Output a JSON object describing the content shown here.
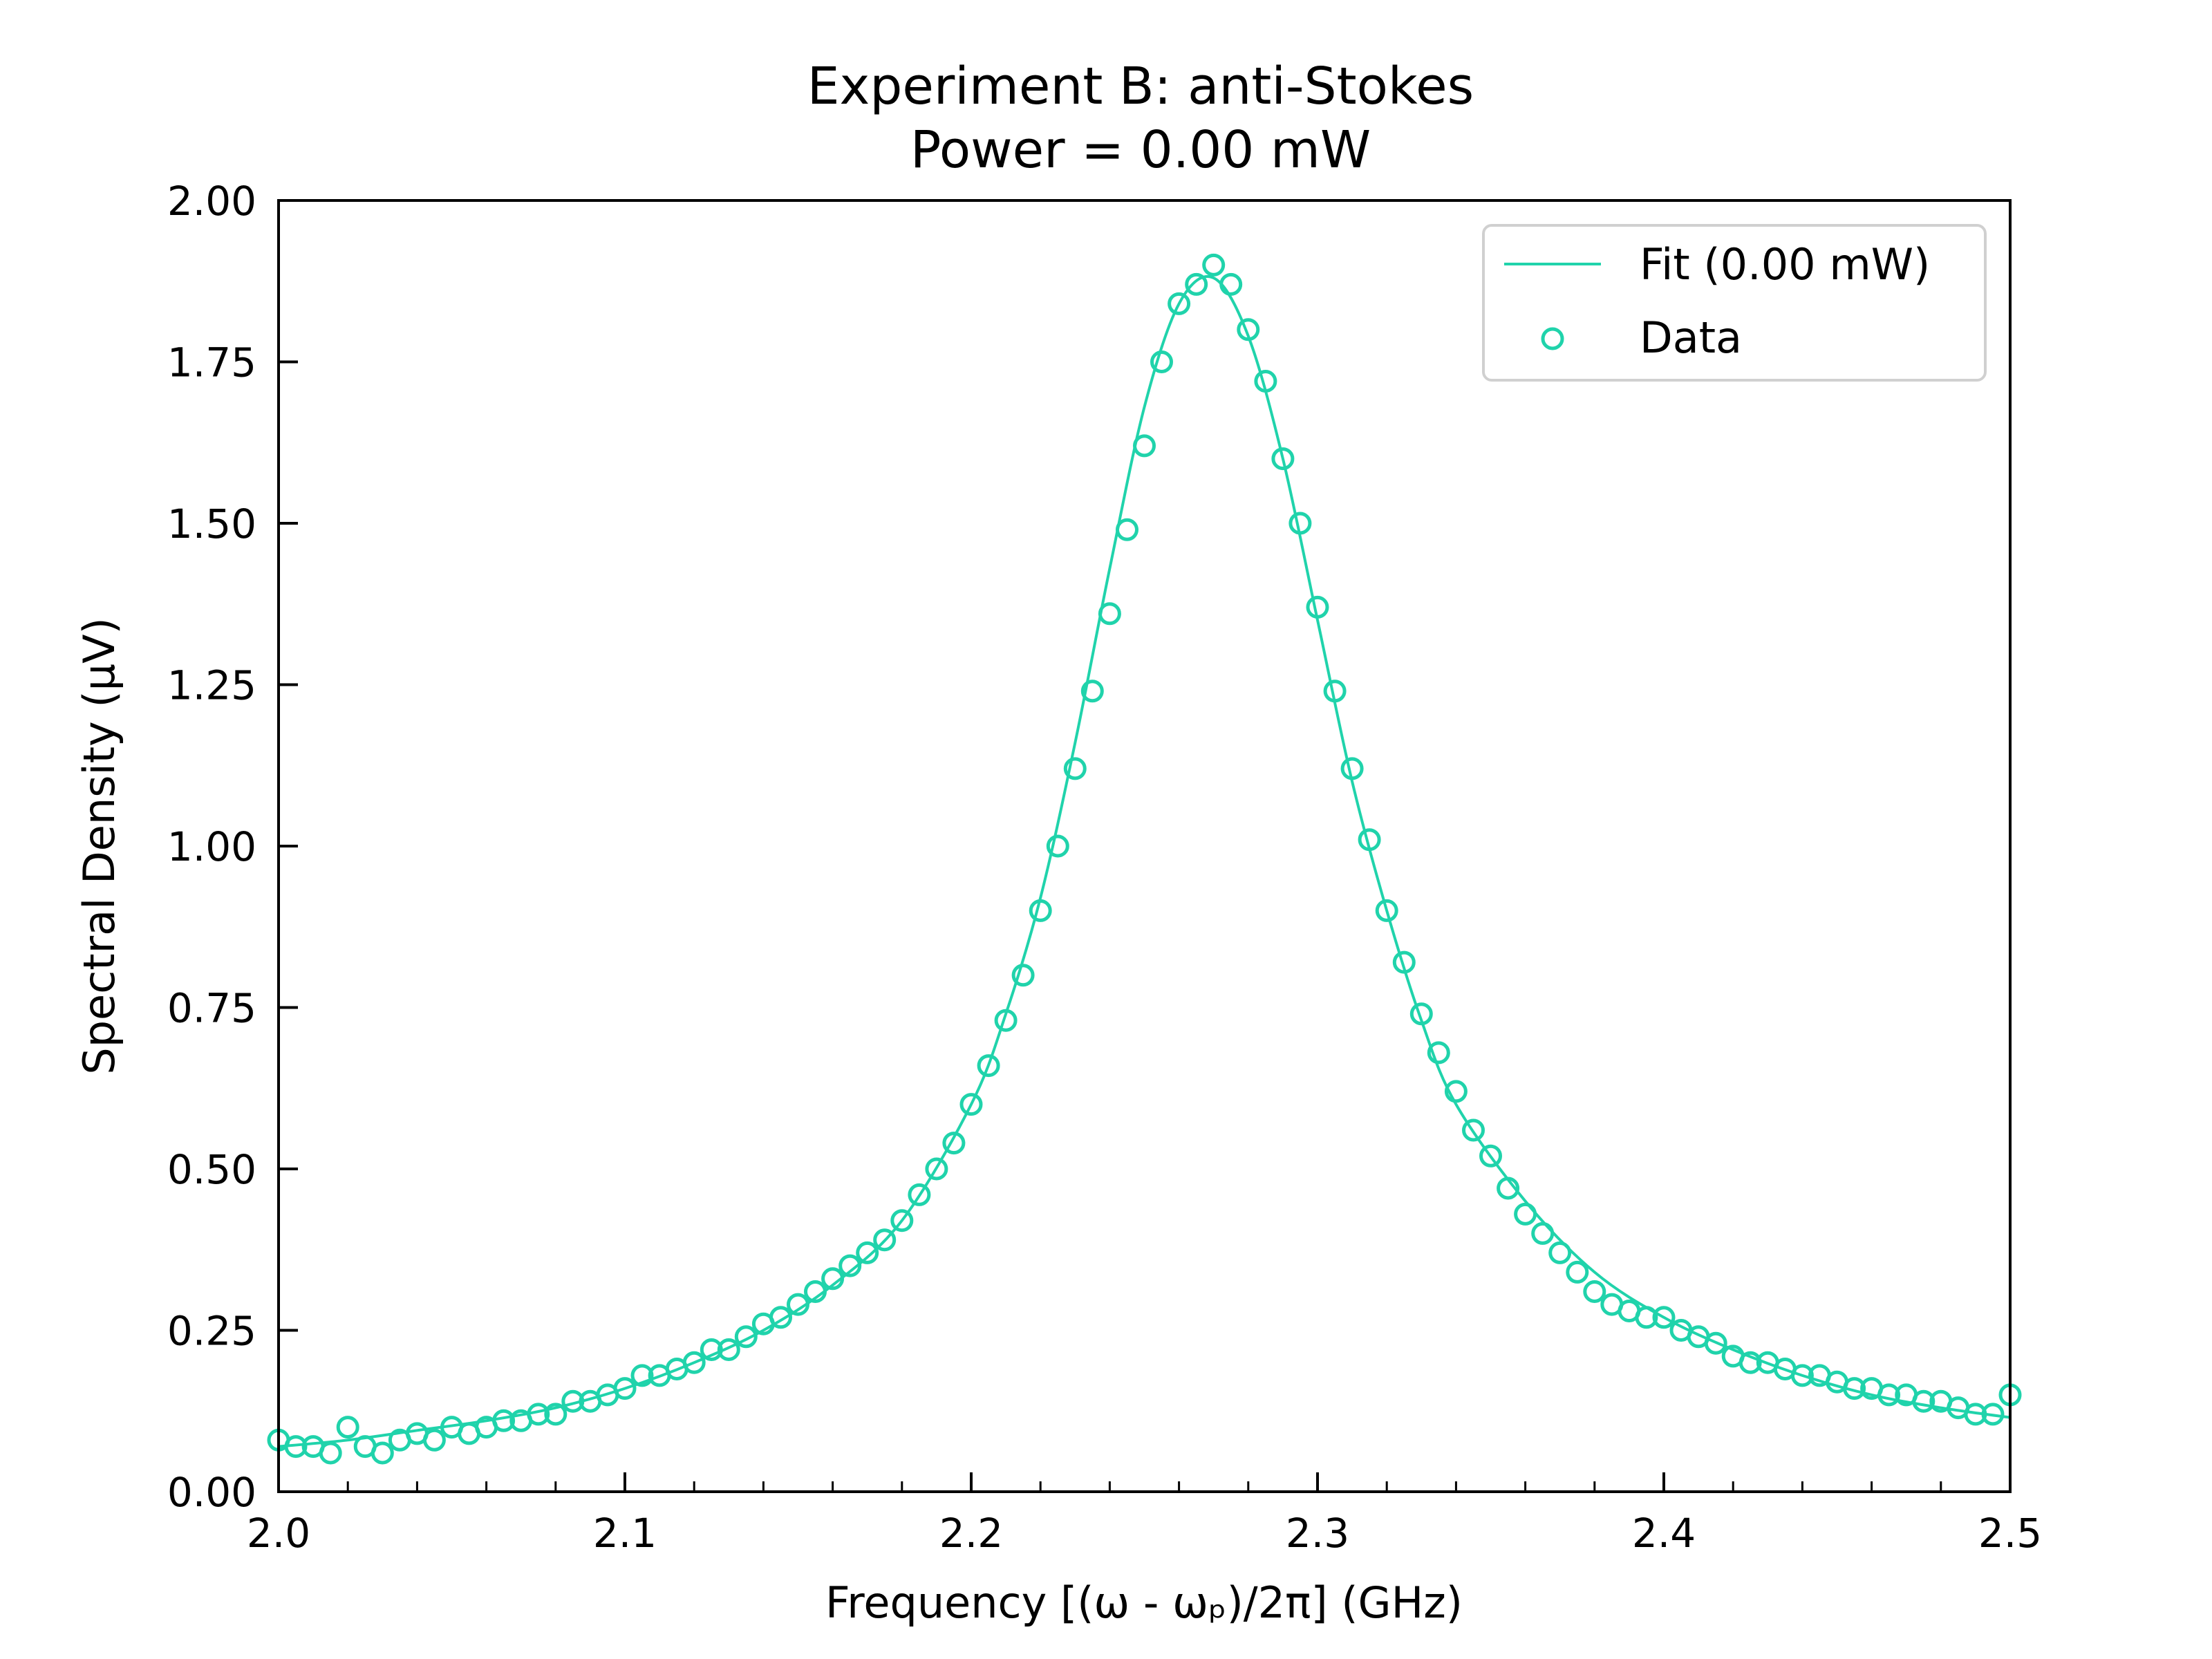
{
  "chart_data": {
    "type": "scatter",
    "title": "Experiment B: anti-Stokes",
    "subtitle": "Power = 0.00 mW",
    "xlabel": "Frequency [(ω - ωₚ)/2π] (GHz)",
    "ylabel": "Spectral Density (μV)",
    "xlim": [
      2.0,
      2.5
    ],
    "ylim": [
      0.0,
      2.0
    ],
    "xticks": [
      "2.0",
      "2.1",
      "2.2",
      "2.3",
      "2.4",
      "2.5"
    ],
    "yticks": [
      "0.00",
      "0.25",
      "0.50",
      "0.75",
      "1.00",
      "1.25",
      "1.50",
      "1.75",
      "2.00"
    ],
    "grid": false,
    "legend_position": "top-right",
    "series": [
      {
        "name": "Fit (0.00 mW)",
        "kind": "line",
        "color": "#20d3ab",
        "x": [
          2.0,
          2.02,
          2.04,
          2.06,
          2.08,
          2.1,
          2.12,
          2.14,
          2.16,
          2.18,
          2.2,
          2.21,
          2.22,
          2.23,
          2.24,
          2.25,
          2.26,
          2.27,
          2.28,
          2.29,
          2.3,
          2.31,
          2.32,
          2.33,
          2.34,
          2.36,
          2.38,
          2.4,
          2.42,
          2.44,
          2.46,
          2.48,
          2.5
        ],
        "y": [
          0.07,
          0.08,
          0.095,
          0.11,
          0.13,
          0.16,
          0.2,
          0.25,
          0.32,
          0.42,
          0.6,
          0.74,
          0.92,
          1.16,
          1.43,
          1.68,
          1.84,
          1.88,
          1.79,
          1.6,
          1.35,
          1.1,
          0.9,
          0.73,
          0.6,
          0.45,
          0.34,
          0.27,
          0.22,
          0.18,
          0.15,
          0.13,
          0.115
        ]
      },
      {
        "name": "Data",
        "kind": "scatter",
        "color": "#20d3ab",
        "x": [
          2.0,
          2.005,
          2.01,
          2.015,
          2.02,
          2.025,
          2.03,
          2.035,
          2.04,
          2.045,
          2.05,
          2.055,
          2.06,
          2.065,
          2.07,
          2.075,
          2.08,
          2.085,
          2.09,
          2.095,
          2.1,
          2.105,
          2.11,
          2.115,
          2.12,
          2.125,
          2.13,
          2.135,
          2.14,
          2.145,
          2.15,
          2.155,
          2.16,
          2.165,
          2.17,
          2.175,
          2.18,
          2.185,
          2.19,
          2.195,
          2.2,
          2.205,
          2.21,
          2.215,
          2.22,
          2.225,
          2.23,
          2.235,
          2.24,
          2.245,
          2.25,
          2.255,
          2.26,
          2.265,
          2.27,
          2.275,
          2.28,
          2.285,
          2.29,
          2.295,
          2.3,
          2.305,
          2.31,
          2.315,
          2.32,
          2.325,
          2.33,
          2.335,
          2.34,
          2.345,
          2.35,
          2.355,
          2.36,
          2.365,
          2.37,
          2.375,
          2.38,
          2.385,
          2.39,
          2.395,
          2.4,
          2.405,
          2.41,
          2.415,
          2.42,
          2.425,
          2.43,
          2.435,
          2.44,
          2.445,
          2.45,
          2.455,
          2.46,
          2.465,
          2.47,
          2.475,
          2.48,
          2.485,
          2.49,
          2.495,
          2.5
        ],
        "y": [
          0.08,
          0.07,
          0.07,
          0.06,
          0.1,
          0.07,
          0.06,
          0.08,
          0.09,
          0.08,
          0.1,
          0.09,
          0.1,
          0.11,
          0.11,
          0.12,
          0.12,
          0.14,
          0.14,
          0.15,
          0.16,
          0.18,
          0.18,
          0.19,
          0.2,
          0.22,
          0.22,
          0.24,
          0.26,
          0.27,
          0.29,
          0.31,
          0.33,
          0.35,
          0.37,
          0.39,
          0.42,
          0.46,
          0.5,
          0.54,
          0.6,
          0.66,
          0.73,
          0.8,
          0.9,
          1.0,
          1.12,
          1.24,
          1.36,
          1.49,
          1.62,
          1.75,
          1.84,
          1.87,
          1.9,
          1.87,
          1.8,
          1.72,
          1.6,
          1.5,
          1.37,
          1.24,
          1.12,
          1.01,
          0.9,
          0.82,
          0.74,
          0.68,
          0.62,
          0.56,
          0.52,
          0.47,
          0.43,
          0.4,
          0.37,
          0.34,
          0.31,
          0.29,
          0.28,
          0.27,
          0.27,
          0.25,
          0.24,
          0.23,
          0.21,
          0.2,
          0.2,
          0.19,
          0.18,
          0.18,
          0.17,
          0.16,
          0.16,
          0.15,
          0.15,
          0.14,
          0.14,
          0.13,
          0.12,
          0.12,
          0.15
        ]
      }
    ]
  }
}
